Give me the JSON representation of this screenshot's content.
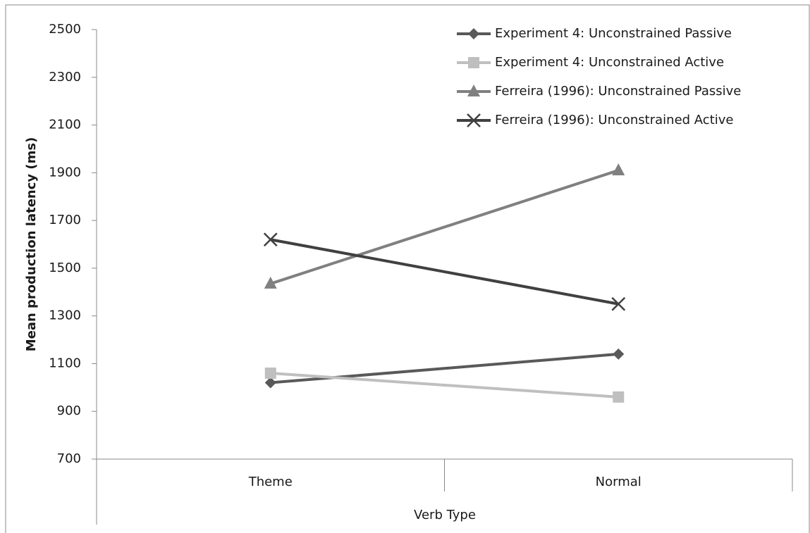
{
  "chart_data": {
    "type": "line",
    "x_label": "Verb Type",
    "y_label": "Mean production latency (ms)",
    "categories": [
      "Theme",
      "Normal"
    ],
    "series": [
      {
        "name": "Experiment 4: Unconstrained Passive",
        "color": "#595959",
        "marker": "diamond",
        "values": [
          1020,
          1140
        ]
      },
      {
        "name": "Experiment 4: Unconstrained Active",
        "color": "#bfbfbf",
        "marker": "square",
        "values": [
          1060,
          960
        ]
      },
      {
        "name": "Ferreira (1996): Unconstrained Passive",
        "color": "#808080",
        "marker": "triangle",
        "values": [
          1435,
          1910
        ]
      },
      {
        "name": "Ferreira (1996): Unconstrained Active",
        "color": "#404040",
        "marker": "x",
        "values": [
          1620,
          1350
        ]
      }
    ],
    "ylim": [
      700,
      2500
    ],
    "yticks": [
      700,
      900,
      1100,
      1300,
      1500,
      1700,
      1900,
      2100,
      2300,
      2500
    ],
    "grid": false,
    "legend": "top-right"
  }
}
